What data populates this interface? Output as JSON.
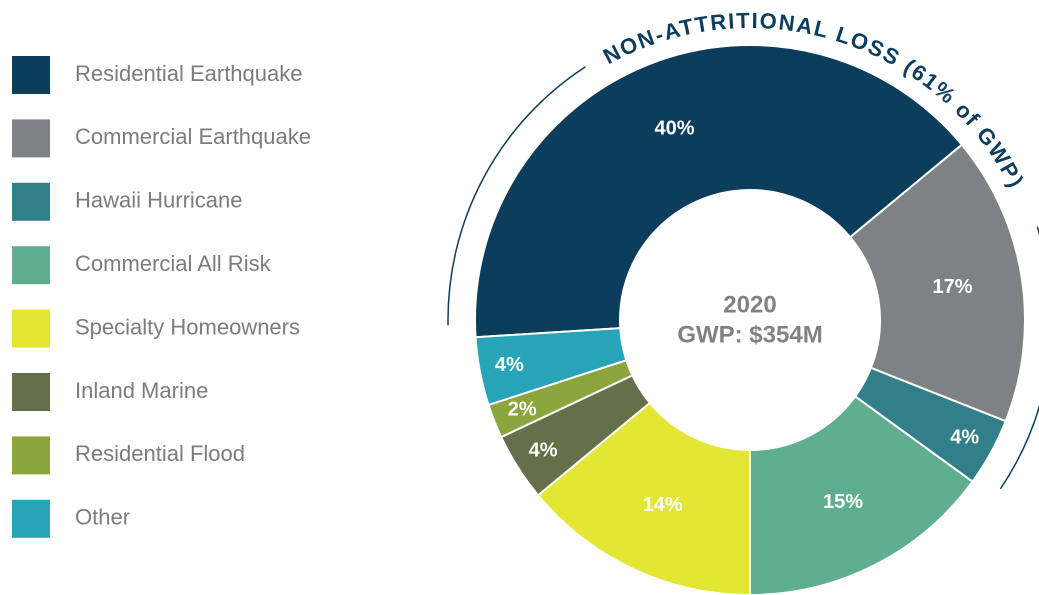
{
  "chart_data": {
    "type": "donut",
    "categories": [
      "Residential Earthquake",
      "Commercial Earthquake",
      "Hawaii Hurricane",
      "Commercial All Risk",
      "Specialty Homeowners",
      "Inland Marine",
      "Residential Flood",
      "Other"
    ],
    "values": [
      40,
      17,
      4,
      15,
      14,
      4,
      2,
      4
    ],
    "value_labels": [
      "40%",
      "17%",
      "4%",
      "15%",
      "14%",
      "4%",
      "2%",
      "4%"
    ],
    "colors": [
      "#0d3d5c",
      "#7f8285",
      "#327f8a",
      "#5fae8f",
      "#e3e632",
      "#656f49",
      "#8aa63c",
      "#27a4b8"
    ],
    "center_title": "2020",
    "center_subtitle": "GWP: $354M",
    "annotation": "NON-ATTRITIONAL LOSS (61% of GWP)",
    "legend": "left"
  }
}
